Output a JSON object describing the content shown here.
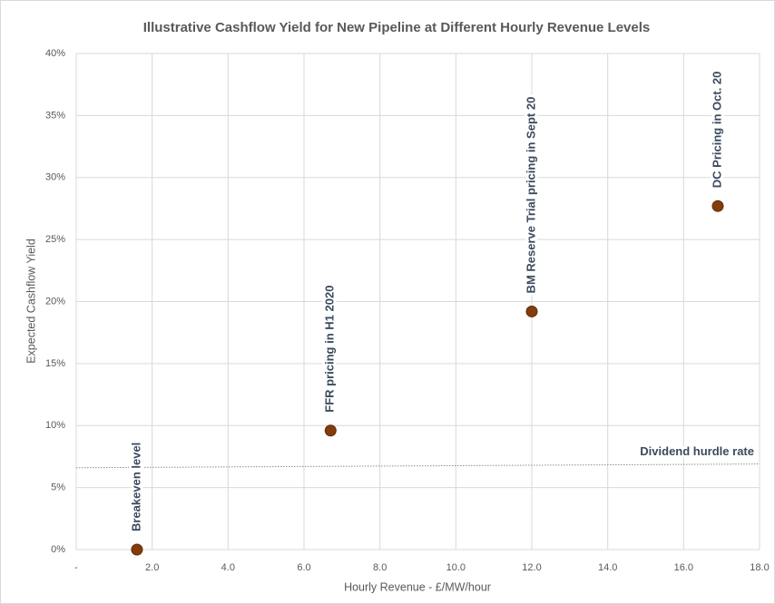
{
  "chart_data": {
    "type": "scatter",
    "title": "Illustrative Cashflow Yield for New Pipeline at Different Hourly Revenue Levels",
    "x_label": "Hourly Revenue - £/MW/hour",
    "y_label": "Expected Cashflow Yield",
    "xlim": [
      0,
      18
    ],
    "ylim": [
      0,
      40
    ],
    "xticks": [
      {
        "value": 0,
        "label": "-"
      },
      {
        "value": 2,
        "label": "2.0"
      },
      {
        "value": 4,
        "label": "4.0"
      },
      {
        "value": 6,
        "label": "6.0"
      },
      {
        "value": 8,
        "label": "8.0"
      },
      {
        "value": 10,
        "label": "10.0"
      },
      {
        "value": 12,
        "label": "12.0"
      },
      {
        "value": 14,
        "label": "14.0"
      },
      {
        "value": 16,
        "label": "16.0"
      },
      {
        "value": 18,
        "label": "18.0"
      }
    ],
    "yticks": [
      {
        "value": 0,
        "label": "0%"
      },
      {
        "value": 5,
        "label": "5%"
      },
      {
        "value": 10,
        "label": "10%"
      },
      {
        "value": 15,
        "label": "15%"
      },
      {
        "value": 20,
        "label": "20%"
      },
      {
        "value": 25,
        "label": "25%"
      },
      {
        "value": 30,
        "label": "30%"
      },
      {
        "value": 35,
        "label": "35%"
      },
      {
        "value": 40,
        "label": "40%"
      }
    ],
    "grid": true,
    "color": "#843c0c",
    "x": [
      1.6,
      6.7,
      12.0,
      16.9
    ],
    "values": [
      0,
      9.6,
      19.2,
      27.7
    ],
    "point_labels": [
      "Breakeven level",
      "FFR pricing in H1 2020",
      "BM Reserve Trial pricing in Sept 20",
      "DC Pricing in Oct. 20"
    ],
    "reference_line": {
      "label": "Dividend hurdle rate",
      "x": [
        0,
        18
      ],
      "values": [
        6.6,
        6.9
      ],
      "color": "#8c8c8c"
    }
  }
}
